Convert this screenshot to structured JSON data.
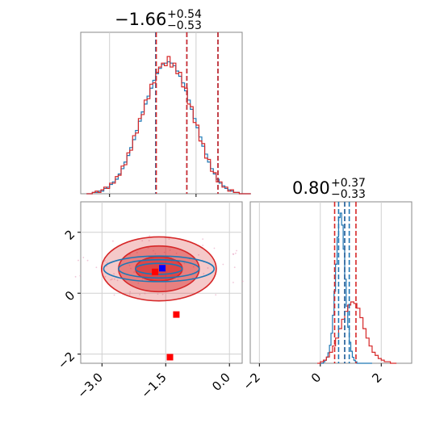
{
  "chart_data": [
    {
      "type": "histogram",
      "panel": "marginal-param-1",
      "title": {
        "median": "−1.66",
        "upper": "+0.54",
        "lower": "−0.53"
      },
      "xlim": [
        -3.5,
        -0.7
      ],
      "quantile_lines": {
        "color": "#d62728",
        "x": [
          -2.19,
          -1.66,
          -1.12
        ]
      },
      "secondary_quantile_lines": {
        "color": "#1f77b4",
        "x": [
          -2.2,
          -1.66,
          -1.12
        ]
      },
      "series": [
        {
          "color": "#1f77b4",
          "edges_start": -3.4,
          "bin_width": 0.05,
          "counts": [
            0,
            0,
            1,
            1,
            2,
            2,
            4,
            5,
            7,
            9,
            11,
            15,
            19,
            24,
            29,
            35,
            41,
            48,
            55,
            62,
            68,
            74,
            80,
            86,
            91,
            95,
            98,
            99,
            100,
            99,
            97,
            93,
            89,
            84,
            78,
            71,
            64,
            57,
            50,
            43,
            36,
            30,
            24,
            19,
            15,
            11,
            8,
            6,
            4,
            3,
            2,
            1,
            1,
            0,
            0,
            0,
            0
          ]
        },
        {
          "color": "#d62728",
          "edges_start": -3.4,
          "bin_width": 0.05,
          "counts": [
            0,
            0,
            1,
            2,
            1,
            3,
            5,
            4,
            8,
            8,
            13,
            14,
            21,
            22,
            31,
            33,
            44,
            46,
            57,
            60,
            71,
            72,
            83,
            84,
            92,
            96,
            99,
            97,
            104,
            96,
            99,
            91,
            92,
            81,
            80,
            68,
            66,
            54,
            52,
            40,
            38,
            27,
            26,
            17,
            16,
            9,
            9,
            5,
            5,
            2,
            3,
            1,
            1,
            0,
            0,
            0,
            0
          ]
        }
      ]
    },
    {
      "type": "contour",
      "panel": "joint-param-1-param-2",
      "xlim": [
        -3.5,
        0.3
      ],
      "ylim": [
        -2.3,
        3.0
      ],
      "x_ticks": [
        "−3.0",
        "−1.5",
        "0.0"
      ],
      "x_tick_values": [
        -3.0,
        -1.5,
        0.0
      ],
      "y_ticks": [
        "−2",
        "0",
        "2"
      ],
      "y_tick_values": [
        -2,
        0,
        2
      ],
      "contour_sets": [
        {
          "color": "#d62728",
          "fill": true,
          "levels": [
            {
              "rx": 1.35,
              "ry": 1.05
            },
            {
              "rx": 0.95,
              "ry": 0.75
            },
            {
              "rx": 0.55,
              "ry": 0.4
            }
          ],
          "center": [
            -1.66,
            0.8
          ]
        },
        {
          "color": "#1f77b4",
          "fill": false,
          "levels": [
            {
              "rx": 1.3,
              "ry": 0.42
            },
            {
              "rx": 0.95,
              "ry": 0.3
            },
            {
              "rx": 0.55,
              "ry": 0.18
            }
          ],
          "center": [
            -1.66,
            0.8
          ]
        }
      ],
      "markers": [
        {
          "color": "#0000ff",
          "x": -1.58,
          "y": 0.82
        },
        {
          "color": "#ff0000",
          "x": -1.75,
          "y": 0.7
        },
        {
          "color": "#ff0000",
          "x": -1.25,
          "y": -0.7
        },
        {
          "color": "#ff0000",
          "x": -1.4,
          "y": -2.1
        }
      ]
    },
    {
      "type": "histogram",
      "panel": "marginal-param-2",
      "title": {
        "median": "0.80",
        "upper": "+0.37",
        "lower": "−0.33"
      },
      "xlim": [
        -2.3,
        3.0
      ],
      "x_ticks": [
        "−2",
        "0",
        "2"
      ],
      "x_tick_values": [
        -2,
        0,
        2
      ],
      "quantile_lines": {
        "color": "#d62728",
        "x": [
          0.47,
          0.8,
          1.17
        ]
      },
      "secondary_quantile_lines": {
        "color": "#1f77b4",
        "x": [
          0.6,
          0.8,
          0.95
        ]
      },
      "series": [
        {
          "color": "#1f77b4",
          "edges_start": 0.0,
          "bin_width": 0.05,
          "counts": [
            0,
            0,
            1,
            2,
            4,
            7,
            12,
            20,
            32,
            48,
            66,
            84,
            97,
            100,
            92,
            76,
            56,
            38,
            24,
            14,
            8,
            4,
            2,
            1,
            0,
            0,
            0,
            0,
            0,
            0,
            0,
            0,
            0,
            0
          ]
        },
        {
          "color": "#d62728",
          "edges_start": -0.1,
          "bin_width": 0.1,
          "counts": [
            0,
            1,
            2,
            4,
            7,
            11,
            16,
            22,
            28,
            33,
            37,
            39,
            38,
            35,
            29,
            22,
            16,
            11,
            7,
            5,
            3,
            2,
            1,
            1,
            0,
            0
          ]
        }
      ]
    }
  ]
}
